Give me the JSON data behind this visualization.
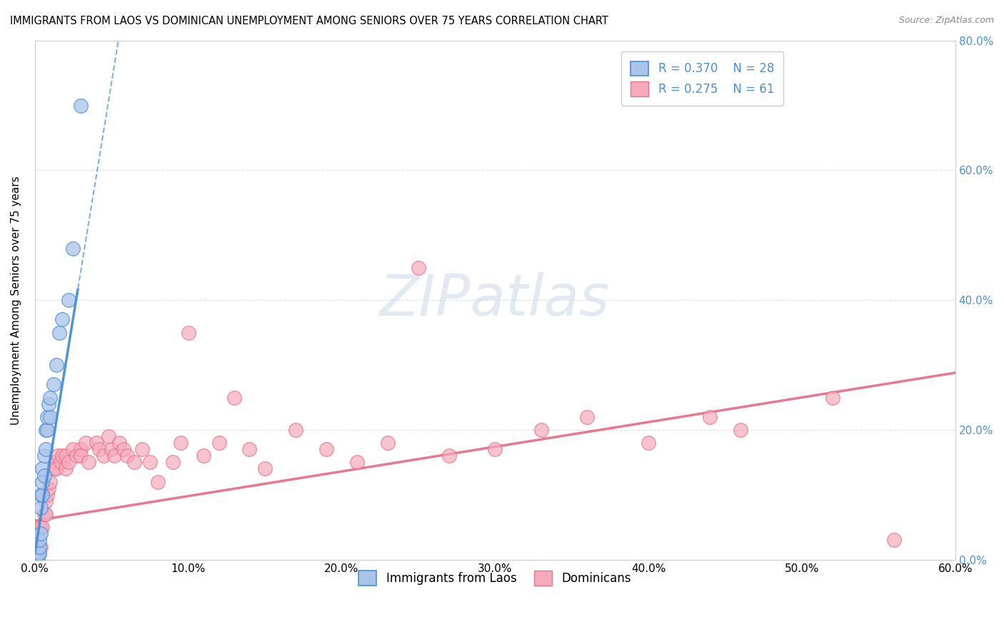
{
  "title": "IMMIGRANTS FROM LAOS VS DOMINICAN UNEMPLOYMENT AMONG SENIORS OVER 75 YEARS CORRELATION CHART",
  "source": "Source: ZipAtlas.com",
  "ylabel": "Unemployment Among Seniors over 75 years",
  "legend_label1": "Immigrants from Laos",
  "legend_label2": "Dominicans",
  "r1": 0.37,
  "n1": 28,
  "r2": 0.275,
  "n2": 61,
  "color1": "#aac4e8",
  "color2": "#f5aabb",
  "trendline1_color": "#4a90d9",
  "trendline2_color": "#e8708a",
  "watermark": "ZIPatlas",
  "xlim": [
    0.0,
    0.6
  ],
  "ylim": [
    0.0,
    0.8
  ],
  "xticks": [
    0.0,
    0.1,
    0.2,
    0.3,
    0.4,
    0.5,
    0.6
  ],
  "yticks": [
    0.0,
    0.2,
    0.4,
    0.6,
    0.8
  ],
  "laos_x": [
    0.001,
    0.002,
    0.002,
    0.003,
    0.003,
    0.003,
    0.004,
    0.004,
    0.004,
    0.005,
    0.005,
    0.005,
    0.006,
    0.006,
    0.007,
    0.007,
    0.008,
    0.008,
    0.009,
    0.01,
    0.01,
    0.012,
    0.014,
    0.016,
    0.018,
    0.022,
    0.025,
    0.03
  ],
  "laos_y": [
    0.0,
    0.0,
    0.01,
    0.01,
    0.02,
    0.03,
    0.04,
    0.08,
    0.1,
    0.1,
    0.12,
    0.14,
    0.13,
    0.16,
    0.17,
    0.2,
    0.2,
    0.22,
    0.24,
    0.22,
    0.25,
    0.27,
    0.3,
    0.35,
    0.37,
    0.4,
    0.48,
    0.7
  ],
  "dom_x": [
    0.002,
    0.003,
    0.004,
    0.004,
    0.005,
    0.006,
    0.007,
    0.007,
    0.008,
    0.009,
    0.01,
    0.012,
    0.013,
    0.014,
    0.015,
    0.017,
    0.018,
    0.02,
    0.02,
    0.022,
    0.025,
    0.027,
    0.03,
    0.03,
    0.033,
    0.035,
    0.04,
    0.042,
    0.045,
    0.048,
    0.05,
    0.052,
    0.055,
    0.058,
    0.06,
    0.065,
    0.07,
    0.075,
    0.08,
    0.09,
    0.095,
    0.1,
    0.11,
    0.12,
    0.13,
    0.14,
    0.15,
    0.17,
    0.19,
    0.21,
    0.23,
    0.25,
    0.27,
    0.3,
    0.33,
    0.36,
    0.4,
    0.44,
    0.46,
    0.52,
    0.56
  ],
  "dom_y": [
    0.0,
    0.01,
    0.02,
    0.05,
    0.05,
    0.07,
    0.07,
    0.09,
    0.1,
    0.11,
    0.12,
    0.14,
    0.15,
    0.14,
    0.16,
    0.15,
    0.16,
    0.16,
    0.14,
    0.15,
    0.17,
    0.16,
    0.17,
    0.16,
    0.18,
    0.15,
    0.18,
    0.17,
    0.16,
    0.19,
    0.17,
    0.16,
    0.18,
    0.17,
    0.16,
    0.15,
    0.17,
    0.15,
    0.12,
    0.15,
    0.18,
    0.35,
    0.16,
    0.18,
    0.25,
    0.17,
    0.14,
    0.2,
    0.17,
    0.15,
    0.18,
    0.45,
    0.16,
    0.17,
    0.2,
    0.22,
    0.18,
    0.22,
    0.2,
    0.25,
    0.03
  ],
  "trendline1_slope": 14.5,
  "trendline1_intercept": 0.01,
  "trendline2_slope": 0.38,
  "trendline2_intercept": 0.06
}
